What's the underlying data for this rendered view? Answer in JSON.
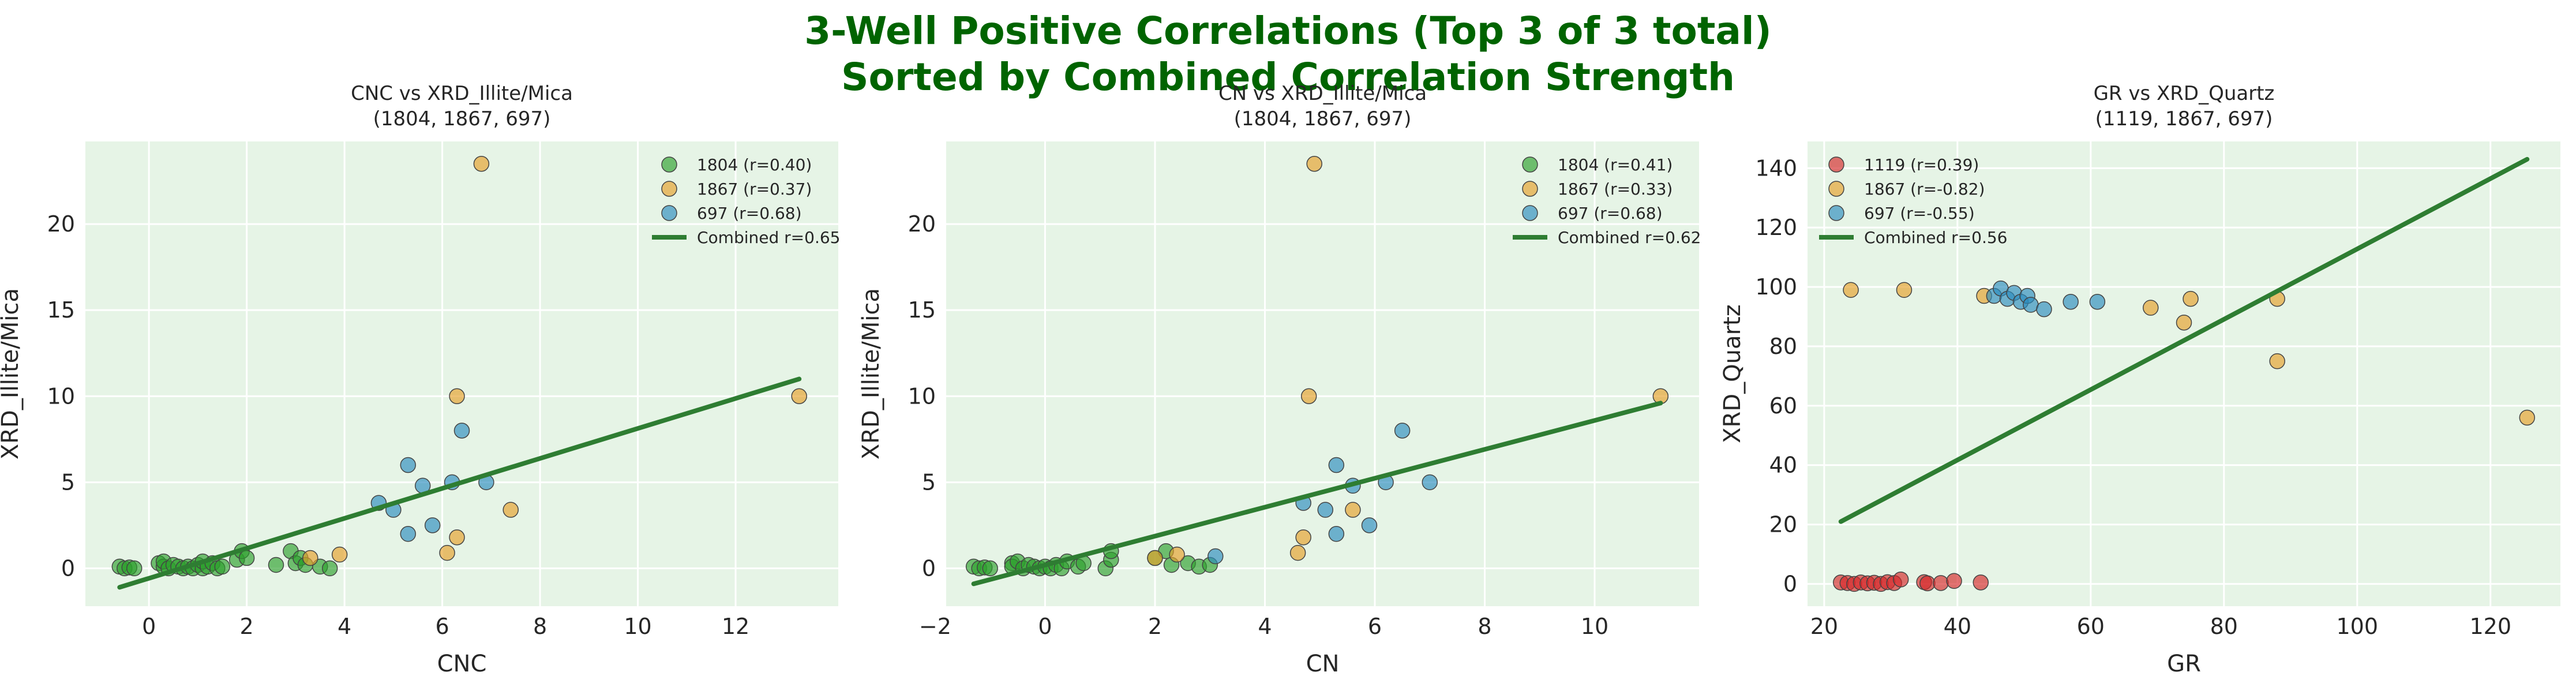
{
  "figure": {
    "title_line1": "3-Well Positive Correlations (Top 3 of 3 total)",
    "title_line2": "Sorted by Combined Correlation Strength",
    "title_color": "#006400",
    "panel_background": "#e6f4e6",
    "grid_color": "#ffffff"
  },
  "chart_data": [
    {
      "type": "scatter",
      "title": "CNC vs XRD_Illite/Mica",
      "subtitle": "(1804, 1867, 697)",
      "xlabel": "CNC",
      "ylabel": "XRD_Illite/Mica",
      "xlim": [
        -1.3,
        14.1
      ],
      "ylim": [
        -2.2,
        24.8
      ],
      "xticks": [
        0,
        2,
        4,
        6,
        8,
        10,
        12
      ],
      "yticks": [
        0,
        5,
        10,
        15,
        20
      ],
      "grid": true,
      "legend_position": "top-right",
      "series": [
        {
          "name": "1804 (r=0.40)",
          "color": "#2ca02c",
          "points": [
            [
              -0.6,
              0.1
            ],
            [
              -0.5,
              0.0
            ],
            [
              -0.4,
              0.05
            ],
            [
              -0.3,
              0.0
            ],
            [
              0.2,
              0.3
            ],
            [
              0.3,
              0.1
            ],
            [
              0.3,
              0.4
            ],
            [
              0.4,
              0.0
            ],
            [
              0.5,
              0.2
            ],
            [
              0.6,
              0.1
            ],
            [
              0.7,
              0.0
            ],
            [
              0.8,
              0.1
            ],
            [
              0.9,
              0.0
            ],
            [
              1.0,
              0.2
            ],
            [
              1.1,
              0.0
            ],
            [
              1.1,
              0.4
            ],
            [
              1.2,
              0.1
            ],
            [
              1.3,
              0.3
            ],
            [
              1.4,
              0.0
            ],
            [
              1.5,
              0.1
            ],
            [
              1.8,
              0.5
            ],
            [
              1.9,
              1.0
            ],
            [
              2.0,
              0.6
            ],
            [
              2.6,
              0.2
            ],
            [
              2.9,
              1.0
            ],
            [
              3.0,
              0.3
            ],
            [
              3.1,
              0.6
            ],
            [
              3.2,
              0.2
            ],
            [
              3.5,
              0.1
            ],
            [
              3.7,
              0.0
            ]
          ]
        },
        {
          "name": "1867 (r=0.37)",
          "color": "#e69f2a",
          "points": [
            [
              6.8,
              23.5
            ],
            [
              13.3,
              10.0
            ],
            [
              6.3,
              10.0
            ],
            [
              7.4,
              3.4
            ],
            [
              6.3,
              1.8
            ],
            [
              6.1,
              0.9
            ],
            [
              3.9,
              0.8
            ],
            [
              3.3,
              0.6
            ]
          ]
        },
        {
          "name": "697 (r=0.68)",
          "color": "#2b8cbe",
          "points": [
            [
              5.3,
              6.0
            ],
            [
              6.4,
              8.0
            ],
            [
              6.9,
              5.0
            ],
            [
              6.2,
              5.0
            ],
            [
              5.6,
              4.8
            ],
            [
              4.7,
              3.8
            ],
            [
              5.0,
              3.4
            ],
            [
              5.8,
              2.5
            ],
            [
              5.3,
              2.0
            ]
          ]
        }
      ],
      "fit": {
        "name": "Combined r=0.65",
        "color": "#2e7d32",
        "x": [
          -0.6,
          13.3
        ],
        "y": [
          -1.1,
          11.0
        ]
      }
    },
    {
      "type": "scatter",
      "title": "CN vs XRD_Illite/Mica",
      "subtitle": "(1804, 1867, 697)",
      "xlabel": "CN",
      "ylabel": "XRD_Illite/Mica",
      "xlim": [
        -1.8,
        11.9
      ],
      "ylim": [
        -2.2,
        24.8
      ],
      "xticks": [
        -2,
        0,
        2,
        4,
        6,
        8,
        10
      ],
      "yticks": [
        0,
        5,
        10,
        15,
        20
      ],
      "grid": true,
      "legend_position": "top-right",
      "series": [
        {
          "name": "1804 (r=0.41)",
          "color": "#2ca02c",
          "points": [
            [
              -1.3,
              0.1
            ],
            [
              -1.2,
              0.0
            ],
            [
              -1.1,
              0.05
            ],
            [
              -1.0,
              0.0
            ],
            [
              -0.6,
              0.3
            ],
            [
              -0.6,
              0.1
            ],
            [
              -0.5,
              0.4
            ],
            [
              -0.4,
              0.0
            ],
            [
              -0.3,
              0.2
            ],
            [
              -0.2,
              0.1
            ],
            [
              -0.1,
              0.0
            ],
            [
              0.0,
              0.1
            ],
            [
              0.1,
              0.0
            ],
            [
              0.2,
              0.2
            ],
            [
              0.3,
              0.0
            ],
            [
              0.4,
              0.4
            ],
            [
              0.6,
              0.1
            ],
            [
              0.7,
              0.3
            ],
            [
              1.1,
              0.0
            ],
            [
              1.2,
              0.5
            ],
            [
              1.2,
              1.0
            ],
            [
              2.0,
              0.6
            ],
            [
              2.2,
              1.0
            ],
            [
              2.3,
              0.2
            ],
            [
              2.6,
              0.3
            ],
            [
              2.8,
              0.1
            ],
            [
              3.0,
              0.2
            ]
          ]
        },
        {
          "name": "1867 (r=0.33)",
          "color": "#e69f2a",
          "points": [
            [
              4.9,
              23.5
            ],
            [
              11.2,
              10.0
            ],
            [
              4.8,
              10.0
            ],
            [
              5.6,
              3.4
            ],
            [
              4.7,
              1.8
            ],
            [
              4.6,
              0.9
            ],
            [
              2.4,
              0.8
            ],
            [
              2.0,
              0.6
            ]
          ]
        },
        {
          "name": "697 (r=0.68)",
          "color": "#2b8cbe",
          "points": [
            [
              5.3,
              6.0
            ],
            [
              6.5,
              8.0
            ],
            [
              7.0,
              5.0
            ],
            [
              6.2,
              5.0
            ],
            [
              5.6,
              4.8
            ],
            [
              4.7,
              3.8
            ],
            [
              5.1,
              3.4
            ],
            [
              5.9,
              2.5
            ],
            [
              5.3,
              2.0
            ],
            [
              3.1,
              0.7
            ]
          ]
        }
      ],
      "fit": {
        "name": "Combined r=0.62",
        "color": "#2e7d32",
        "x": [
          -1.3,
          11.2
        ],
        "y": [
          -0.9,
          9.6
        ]
      }
    },
    {
      "type": "scatter",
      "title": "GR vs XRD_Quartz",
      "subtitle": "(1119, 1867, 697)",
      "xlabel": "GR",
      "ylabel": "XRD_Quartz",
      "xlim": [
        17.5,
        130.5
      ],
      "ylim": [
        -7.5,
        149
      ],
      "xticks": [
        20,
        40,
        60,
        80,
        100,
        120
      ],
      "yticks": [
        0,
        20,
        40,
        60,
        80,
        100,
        120,
        140
      ],
      "grid": true,
      "legend_position": "top-left",
      "series": [
        {
          "name": "1119 (r=0.39)",
          "color": "#d62728",
          "points": [
            [
              22.5,
              0.5
            ],
            [
              23.5,
              0.3
            ],
            [
              24.5,
              0.0
            ],
            [
              25.5,
              0.5
            ],
            [
              26.5,
              0.2
            ],
            [
              27.5,
              0.4
            ],
            [
              28.5,
              0.0
            ],
            [
              29.5,
              0.6
            ],
            [
              30.5,
              0.3
            ],
            [
              31.5,
              1.5
            ],
            [
              35.0,
              0.6
            ],
            [
              35.5,
              0.2
            ],
            [
              37.5,
              0.3
            ],
            [
              39.5,
              1.0
            ],
            [
              43.5,
              0.5
            ]
          ]
        },
        {
          "name": "1867 (r=-0.82)",
          "color": "#e69f2a",
          "points": [
            [
              24.0,
              99.0
            ],
            [
              32.0,
              99.0
            ],
            [
              44.0,
              97.0
            ],
            [
              69.0,
              93.0
            ],
            [
              74.0,
              88.0
            ],
            [
              75.0,
              96.0
            ],
            [
              88.0,
              96.0
            ],
            [
              88.0,
              75.0
            ],
            [
              125.5,
              56.0
            ]
          ]
        },
        {
          "name": "697 (r=-0.55)",
          "color": "#2b8cbe",
          "points": [
            [
              45.5,
              97.0
            ],
            [
              46.5,
              99.5
            ],
            [
              47.5,
              96.0
            ],
            [
              48.5,
              98.0
            ],
            [
              49.5,
              95.0
            ],
            [
              50.5,
              97.0
            ],
            [
              51.0,
              94.0
            ],
            [
              53.0,
              92.5
            ],
            [
              57.0,
              95.0
            ],
            [
              61.0,
              95.0
            ]
          ]
        }
      ],
      "fit": {
        "name": "Combined r=0.56",
        "color": "#2e7d32",
        "x": [
          22.5,
          125.5
        ],
        "y": [
          21.0,
          143.0
        ]
      }
    }
  ]
}
